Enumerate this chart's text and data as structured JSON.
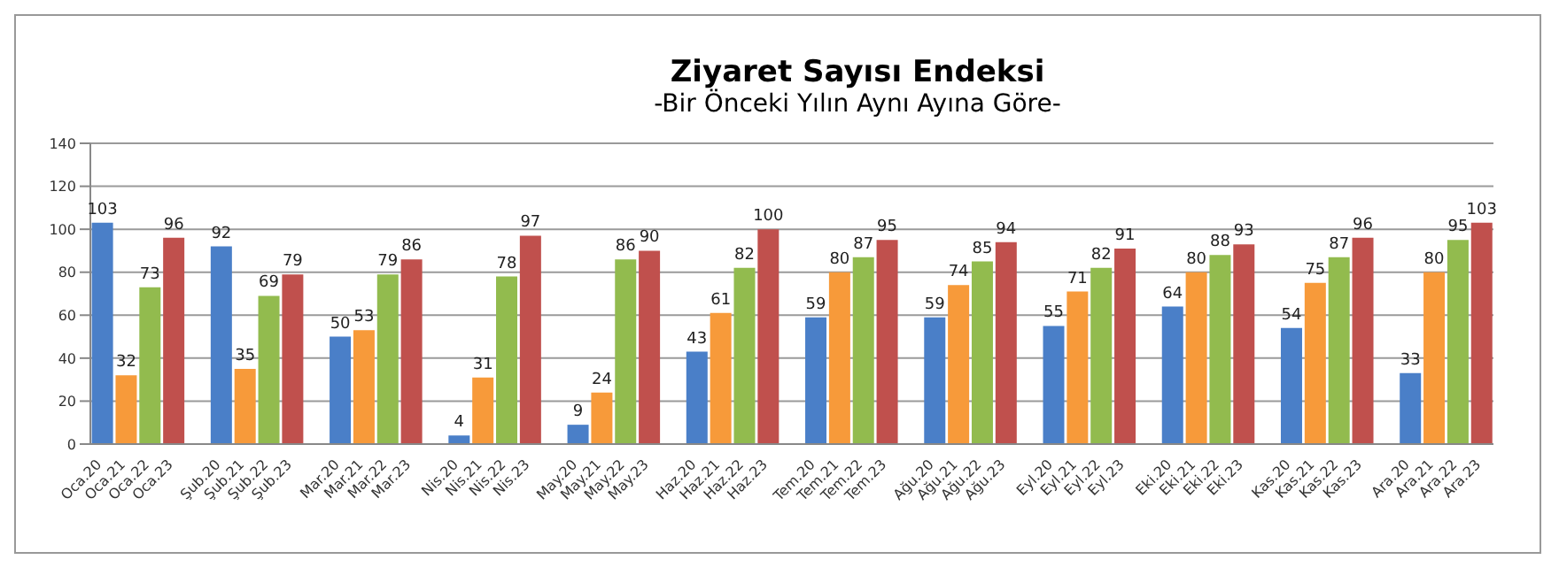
{
  "chart_data": {
    "type": "bar",
    "title": "Ziyaret Sayısı Endeksi",
    "subtitle": "-Bir Önceki Yılın Aynı Ayına Göre-",
    "categories": [
      "Oca.20",
      "Oca.21",
      "Oca.22",
      "Oca.23",
      null,
      "Şub.20",
      "Şub.21",
      "Şub.22",
      "Şub.23",
      null,
      "Mar.20",
      "Mar.21",
      "Mar.22",
      "Mar.23",
      null,
      "Nis.20",
      "Nis.21",
      "Nis.22",
      "Nis.23",
      null,
      "May.20",
      "May.21",
      "May.22",
      "May.23",
      null,
      "Haz.20",
      "Haz.21",
      "Haz.22",
      "Haz.23",
      null,
      "Tem.20",
      "Tem.21",
      "Tem.22",
      "Tem.23",
      null,
      "Ağu.20",
      "Ağu.21",
      "Ağu.22",
      "Ağu.23",
      null,
      "Eyl.20",
      "Eyl.21",
      "Eyl.22",
      "Eyl.23",
      null,
      "Eki.20",
      "Eki.21",
      "Eki.22",
      "Eki.23",
      null,
      "Kas.20",
      "Kas.21",
      "Kas.22",
      "Kas.23",
      null,
      "Ara.20",
      "Ara.21",
      "Ara.22",
      "Ara.23"
    ],
    "values": [
      103,
      32,
      73,
      96,
      null,
      92,
      35,
      69,
      79,
      null,
      50,
      53,
      79,
      86,
      null,
      4,
      31,
      78,
      97,
      null,
      9,
      24,
      86,
      90,
      null,
      43,
      61,
      82,
      100,
      null,
      59,
      80,
      87,
      95,
      null,
      59,
      74,
      85,
      94,
      null,
      55,
      71,
      82,
      91,
      null,
      64,
      80,
      88,
      93,
      null,
      54,
      75,
      87,
      96,
      null,
      33,
      80,
      95,
      103
    ],
    "colors": [
      "#4a7fc8",
      "#f79a3a",
      "#92bb4e",
      "#c0504d",
      null,
      "#4a7fc8",
      "#f79a3a",
      "#92bb4e",
      "#c0504d",
      null,
      "#4a7fc8",
      "#f79a3a",
      "#92bb4e",
      "#c0504d",
      null,
      "#4a7fc8",
      "#f79a3a",
      "#92bb4e",
      "#c0504d",
      null,
      "#4a7fc8",
      "#f79a3a",
      "#92bb4e",
      "#c0504d",
      null,
      "#4a7fc8",
      "#f79a3a",
      "#92bb4e",
      "#c0504d",
      null,
      "#4a7fc8",
      "#f79a3a",
      "#92bb4e",
      "#c0504d",
      null,
      "#4a7fc8",
      "#f79a3a",
      "#92bb4e",
      "#c0504d",
      null,
      "#4a7fc8",
      "#f79a3a",
      "#92bb4e",
      "#c0504d",
      null,
      "#4a7fc8",
      "#f79a3a",
      "#92bb4e",
      "#c0504d",
      null,
      "#4a7fc8",
      "#f79a3a",
      "#92bb4e",
      "#c0504d",
      null,
      "#4a7fc8",
      "#f79a3a",
      "#92bb4e",
      "#c0504d"
    ],
    "ylim": [
      0,
      140
    ],
    "yticks": [
      0,
      20,
      40,
      60,
      80,
      100,
      120,
      140
    ],
    "grid": "y",
    "data_labels": true
  }
}
